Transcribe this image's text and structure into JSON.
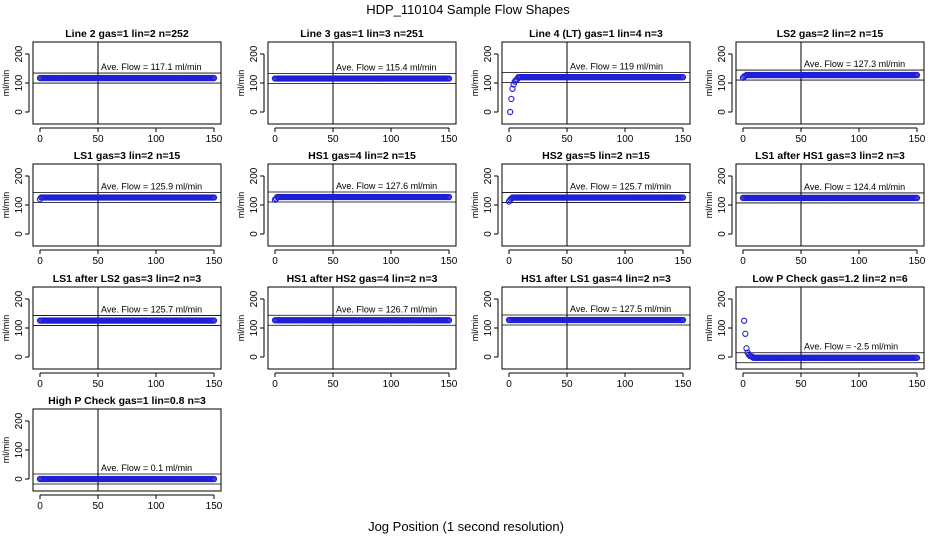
{
  "figure": {
    "title": "HDP_110104  Sample Flow Shapes",
    "xlabel": "Jog Position (1 second resolution)"
  },
  "chart_data": [
    {
      "type": "scatter",
      "title": "Line 2 gas=1 lin=2 n=252",
      "ylabel": "ml/min",
      "annotation": "Ave. Flow =  117.1  ml/min",
      "mean": 117.1,
      "xlim": [
        0,
        150
      ],
      "ylim": [
        0,
        200
      ],
      "xticks": [
        0,
        50,
        100,
        150
      ],
      "yticks": [
        0,
        100,
        200
      ],
      "vline_x": 50,
      "x_range": [
        0,
        150
      ],
      "steady_value": 117.1,
      "startup": []
    },
    {
      "type": "scatter",
      "title": "Line 3 gas=1 lin=3 n=251",
      "ylabel": "ml/min",
      "annotation": "Ave. Flow =  115.4  ml/min",
      "mean": 115.4,
      "xlim": [
        0,
        150
      ],
      "ylim": [
        0,
        200
      ],
      "xticks": [
        0,
        50,
        100,
        150
      ],
      "yticks": [
        0,
        100,
        200
      ],
      "vline_x": 50,
      "x_range": [
        0,
        150
      ],
      "steady_value": 115.4,
      "startup": []
    },
    {
      "type": "scatter",
      "title": "Line 4 (LT) gas=1 lin=4 n=3",
      "ylabel": "ml/min",
      "annotation": "Ave. Flow =  119  ml/min",
      "mean": 119,
      "xlim": [
        0,
        150
      ],
      "ylim": [
        0,
        200
      ],
      "xticks": [
        0,
        50,
        100,
        150
      ],
      "yticks": [
        0,
        100,
        200
      ],
      "vline_x": 50,
      "x_range": [
        0,
        150
      ],
      "steady_value": 120,
      "startup": [
        [
          1,
          0
        ],
        [
          2,
          45
        ],
        [
          3,
          80
        ],
        [
          4,
          95
        ],
        [
          5,
          105
        ],
        [
          6,
          110
        ],
        [
          7,
          113
        ]
      ]
    },
    {
      "type": "scatter",
      "title": "LS2 gas=2 lin=2 n=15",
      "ylabel": "ml/min",
      "annotation": "Ave. Flow =  127.3  ml/min",
      "mean": 127.3,
      "xlim": [
        0,
        150
      ],
      "ylim": [
        0,
        200
      ],
      "xticks": [
        0,
        50,
        100,
        150
      ],
      "yticks": [
        0,
        100,
        200
      ],
      "vline_x": 50,
      "x_range": [
        0,
        150
      ],
      "steady_value": 127.3,
      "startup": [
        [
          0,
          118
        ],
        [
          1,
          122
        ],
        [
          2,
          125
        ]
      ]
    },
    {
      "type": "scatter",
      "title": "LS1 gas=3 lin=2 n=15",
      "ylabel": "ml/min",
      "annotation": "Ave. Flow =  125.9  ml/min",
      "mean": 125.9,
      "xlim": [
        0,
        150
      ],
      "ylim": [
        0,
        200
      ],
      "xticks": [
        0,
        50,
        100,
        150
      ],
      "yticks": [
        0,
        100,
        200
      ],
      "vline_x": 50,
      "x_range": [
        0,
        150
      ],
      "steady_value": 125.9,
      "startup": [
        [
          0,
          120
        ]
      ]
    },
    {
      "type": "scatter",
      "title": "HS1 gas=4 lin=2 n=15",
      "ylabel": "ml/min",
      "annotation": "Ave. Flow =  127.6  ml/min",
      "mean": 127.6,
      "xlim": [
        0,
        150
      ],
      "ylim": [
        0,
        200
      ],
      "xticks": [
        0,
        50,
        100,
        150
      ],
      "yticks": [
        0,
        100,
        200
      ],
      "vline_x": 50,
      "x_range": [
        0,
        150
      ],
      "steady_value": 127.6,
      "startup": [
        [
          0,
          118
        ],
        [
          1,
          122
        ]
      ]
    },
    {
      "type": "scatter",
      "title": "HS2 gas=5 lin=2 n=15",
      "ylabel": "ml/min",
      "annotation": "Ave. Flow =  125.7  ml/min",
      "mean": 125.7,
      "xlim": [
        0,
        150
      ],
      "ylim": [
        0,
        200
      ],
      "xticks": [
        0,
        50,
        100,
        150
      ],
      "yticks": [
        0,
        100,
        200
      ],
      "vline_x": 50,
      "x_range": [
        0,
        150
      ],
      "steady_value": 125.7,
      "startup": [
        [
          0,
          112
        ],
        [
          1,
          118
        ],
        [
          2,
          122
        ]
      ]
    },
    {
      "type": "scatter",
      "title": "LS1 after HS1 gas=3 lin=2 n=3",
      "ylabel": "ml/min",
      "annotation": "Ave. Flow =  124.4  ml/min",
      "mean": 124.4,
      "xlim": [
        0,
        150
      ],
      "ylim": [
        0,
        200
      ],
      "xticks": [
        0,
        50,
        100,
        150
      ],
      "yticks": [
        0,
        100,
        200
      ],
      "vline_x": 50,
      "x_range": [
        0,
        150
      ],
      "steady_value": 124.4,
      "startup": []
    },
    {
      "type": "scatter",
      "title": "LS1 after LS2 gas=3 lin=2 n=3",
      "ylabel": "ml/min",
      "annotation": "Ave. Flow =  125.7  ml/min",
      "mean": 125.7,
      "xlim": [
        0,
        150
      ],
      "ylim": [
        0,
        200
      ],
      "xticks": [
        0,
        50,
        100,
        150
      ],
      "yticks": [
        0,
        100,
        200
      ],
      "vline_x": 50,
      "x_range": [
        0,
        150
      ],
      "steady_value": 125.7,
      "startup": []
    },
    {
      "type": "scatter",
      "title": "HS1 after HS2 gas=4 lin=2 n=3",
      "ylabel": "ml/min",
      "annotation": "Ave. Flow =  126.7  ml/min",
      "mean": 126.7,
      "xlim": [
        0,
        150
      ],
      "ylim": [
        0,
        200
      ],
      "xticks": [
        0,
        50,
        100,
        150
      ],
      "yticks": [
        0,
        100,
        200
      ],
      "vline_x": 50,
      "x_range": [
        0,
        150
      ],
      "steady_value": 126.7,
      "startup": []
    },
    {
      "type": "scatter",
      "title": "HS1 after LS1 gas=4 lin=2 n=3",
      "ylabel": "ml/min",
      "annotation": "Ave. Flow =  127.5  ml/min",
      "mean": 127.5,
      "xlim": [
        0,
        150
      ],
      "ylim": [
        0,
        200
      ],
      "xticks": [
        0,
        50,
        100,
        150
      ],
      "yticks": [
        0,
        100,
        200
      ],
      "vline_x": 50,
      "x_range": [
        0,
        150
      ],
      "steady_value": 127.5,
      "startup": []
    },
    {
      "type": "scatter",
      "title": "Low P Check gas=1.2 lin=2 n=6",
      "ylabel": "ml/min",
      "annotation": "Ave. Flow =  -2.5  ml/min",
      "mean": -2.5,
      "xlim": [
        0,
        150
      ],
      "ylim": [
        0,
        200
      ],
      "xticks": [
        0,
        50,
        100,
        150
      ],
      "yticks": [
        0,
        100,
        200
      ],
      "vline_x": 50,
      "x_range": [
        0,
        150
      ],
      "steady_value": -2.5,
      "startup": [
        [
          1,
          125
        ],
        [
          2,
          80
        ],
        [
          3,
          30
        ],
        [
          4,
          15
        ],
        [
          5,
          8
        ],
        [
          6,
          4
        ],
        [
          7,
          2
        ],
        [
          8,
          1
        ]
      ]
    },
    {
      "type": "scatter",
      "title": "High P Check gas=1 lin=0.8 n=3",
      "ylabel": "ml/min",
      "annotation": "Ave. Flow =  0.1  ml/min",
      "mean": 0.1,
      "xlim": [
        0,
        150
      ],
      "ylim": [
        0,
        200
      ],
      "xticks": [
        0,
        50,
        100,
        150
      ],
      "yticks": [
        0,
        100,
        200
      ],
      "vline_x": 50,
      "x_range": [
        0,
        150
      ],
      "steady_value": 0.1,
      "startup": []
    }
  ]
}
